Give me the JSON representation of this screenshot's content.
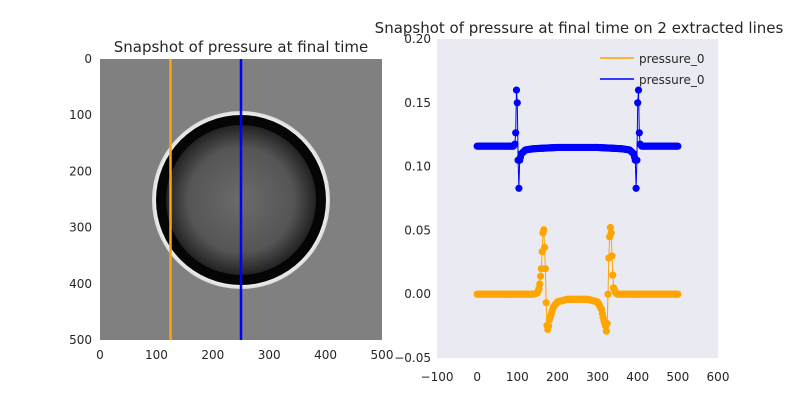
{
  "chart_data": [
    {
      "type": "heatmap",
      "title": "Snapshot of pressure at final time",
      "xlim": [
        0,
        500
      ],
      "ylim": [
        500,
        0
      ],
      "xticks": [
        "0",
        "100",
        "200",
        "300",
        "400",
        "500"
      ],
      "yticks": [
        "0",
        "100",
        "200",
        "300",
        "400",
        "500"
      ],
      "grid": false,
      "colormap": "gray",
      "field": {
        "background": 0.5,
        "disk_center": [
          250,
          250
        ],
        "disk_radius": 155,
        "ring_outer_radius": 155,
        "ring_inner_radius": 150,
        "dark_ring_inner_radius": 137,
        "interior_center_level": 0.42,
        "interior_edge_level": 0.12
      },
      "lines": [
        {
          "name": "pressure_0",
          "x": 125,
          "color": "#ffa500"
        },
        {
          "name": "pressure_0",
          "x": 250,
          "color": "#0000ff"
        }
      ]
    },
    {
      "type": "line",
      "title": "Snapshot of pressure at final time on 2 extracted lines",
      "xlabel": "",
      "ylabel": "",
      "xlim": [
        -100,
        600
      ],
      "ylim": [
        -0.05,
        0.2
      ],
      "xticks": [
        "−100",
        "0",
        "100",
        "200",
        "300",
        "400",
        "500",
        "600"
      ],
      "yticks": [
        "−0.05",
        "0.00",
        "0.05",
        "0.10",
        "0.15",
        "0.20"
      ],
      "grid": false,
      "background": "#eaeaf2",
      "legend_position": "top-right",
      "markers": true,
      "series": [
        {
          "name": "pressure_0",
          "color": "#ffa500",
          "x": [
            0,
            140,
            150,
            155,
            160,
            163,
            165,
            167,
            170,
            173,
            175,
            178,
            180,
            185,
            190,
            200,
            225,
            250,
            275,
            300,
            310,
            315,
            320,
            322,
            325,
            327,
            330,
            333,
            335,
            337,
            340,
            345,
            350,
            360,
            500
          ],
          "y": [
            0,
            0,
            0.001,
            0.005,
            0.02,
            0.04,
            0.056,
            0.045,
            0.02,
            -0.02,
            -0.029,
            -0.025,
            -0.02,
            -0.015,
            -0.01,
            -0.006,
            -0.004,
            -0.004,
            -0.004,
            -0.006,
            -0.012,
            -0.02,
            -0.025,
            -0.029,
            -0.02,
            0.02,
            0.045,
            0.056,
            0.04,
            0.02,
            0.005,
            0.001,
            0,
            0,
            0
          ]
        },
        {
          "name": "pressure_0",
          "color": "#0000ff",
          "x": [
            0,
            80,
            90,
            95,
            97,
            98,
            99,
            100,
            102,
            104,
            106,
            110,
            120,
            140,
            200,
            250,
            300,
            360,
            380,
            390,
            394,
            396,
            398,
            400,
            401,
            402,
            403,
            405,
            410,
            420,
            500
          ],
          "y": [
            0.116,
            0.116,
            0.116,
            0.118,
            0.135,
            0.16,
            0.169,
            0.15,
            0.105,
            0.083,
            0.105,
            0.11,
            0.113,
            0.114,
            0.115,
            0.115,
            0.115,
            0.114,
            0.113,
            0.11,
            0.105,
            0.083,
            0.105,
            0.15,
            0.169,
            0.16,
            0.135,
            0.118,
            0.116,
            0.116,
            0.116
          ]
        }
      ]
    }
  ]
}
